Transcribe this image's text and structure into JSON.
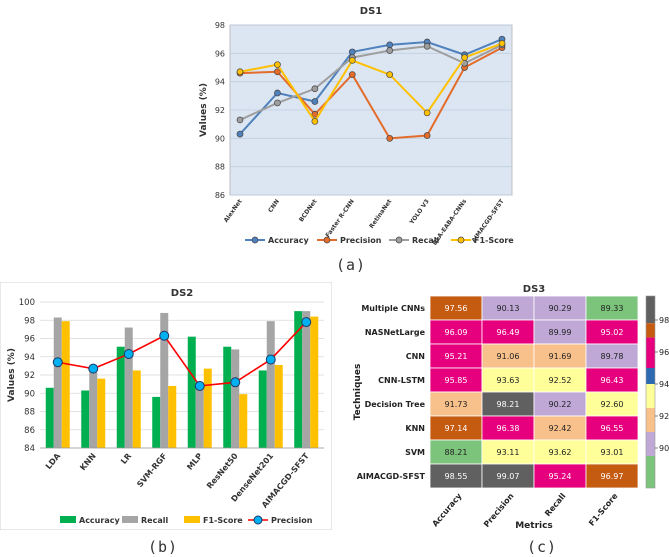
{
  "captions": {
    "a": "(a)",
    "b": "(b)",
    "c": "(c)"
  },
  "chart_data": [
    {
      "id": "ds1",
      "type": "line",
      "title": "DS1",
      "ylabel": "Values (%)",
      "xlabel": "",
      "ylim": [
        86,
        98
      ],
      "yticks": [
        86,
        88,
        90,
        92,
        94,
        96,
        98
      ],
      "grid": true,
      "legend_position": "bottom",
      "categories": [
        "AlexNet",
        "CNN",
        "BCDNet",
        "Faster R-CNN",
        "RetinaNet",
        "YOLO V3",
        "DLA-EABA-CNNs",
        "AIMACGD-SFST"
      ],
      "series": [
        {
          "name": "Accuracy",
          "color": "#4f81bd",
          "values": [
            90.3,
            93.2,
            92.6,
            96.1,
            96.6,
            96.8,
            95.9,
            97.0
          ]
        },
        {
          "name": "Precision",
          "color": "#e46c2a",
          "values": [
            94.6,
            94.7,
            91.7,
            94.5,
            90.0,
            90.2,
            95.0,
            96.4
          ]
        },
        {
          "name": "Recall",
          "color": "#9e9e9e",
          "values": [
            91.3,
            92.5,
            93.5,
            95.7,
            96.2,
            96.5,
            95.3,
            96.6
          ]
        },
        {
          "name": "F1-Score",
          "color": "#ffc000",
          "values": [
            94.7,
            95.2,
            91.2,
            95.5,
            94.5,
            91.8,
            95.7,
            96.7
          ]
        }
      ]
    },
    {
      "id": "ds2",
      "type": "bar",
      "title": "DS2",
      "ylabel": "Values (%)",
      "xlabel": "",
      "ylim": [
        84,
        100
      ],
      "yticks": [
        84,
        86,
        88,
        90,
        92,
        94,
        96,
        98,
        100
      ],
      "grid": true,
      "legend_position": "bottom",
      "categories": [
        "LDA",
        "KNN",
        "LR",
        "SVM-RGF",
        "MLP",
        "ResNet50",
        "DenseNet201",
        "AIMACGD-SFST"
      ],
      "series": [
        {
          "name": "Accuracy",
          "kind": "bar",
          "color": "#00b050",
          "values": [
            90.6,
            90.3,
            95.1,
            89.6,
            96.2,
            95.1,
            92.5,
            99.0
          ]
        },
        {
          "name": "Recall",
          "kind": "bar",
          "color": "#a5a5a5",
          "values": [
            98.3,
            92.3,
            97.2,
            98.8,
            90.6,
            94.8,
            97.9,
            99.0
          ]
        },
        {
          "name": "F1-Score",
          "kind": "bar",
          "color": "#ffc000",
          "values": [
            97.9,
            91.6,
            92.5,
            90.8,
            92.7,
            89.9,
            93.1,
            98.4
          ]
        },
        {
          "name": "Precision",
          "kind": "line",
          "color": "#ff0000",
          "marker": "#00b0f0",
          "values": [
            93.4,
            92.7,
            94.3,
            96.3,
            90.8,
            91.2,
            93.7,
            97.8
          ]
        }
      ]
    },
    {
      "id": "ds3",
      "type": "heatmap",
      "title": "DS3",
      "xlabel": "Metrics",
      "ylabel": "Techniques",
      "x": [
        "Accuracy",
        "Precision",
        "Recall",
        "F1-Score"
      ],
      "y": [
        "Multiple CNNs",
        "NASNetLarge",
        "CNN",
        "CNN-LSTM",
        "Decision Tree",
        "KNN",
        "SVM",
        "AIMACGD-SFST"
      ],
      "values": [
        [
          97.56,
          90.13,
          90.29,
          89.33
        ],
        [
          96.09,
          96.49,
          89.99,
          95.02
        ],
        [
          95.21,
          91.06,
          91.69,
          89.78
        ],
        [
          95.85,
          93.63,
          92.52,
          96.43
        ],
        [
          91.73,
          98.21,
          90.22,
          92.6
        ],
        [
          97.14,
          96.38,
          92.42,
          96.55
        ],
        [
          88.21,
          93.11,
          93.62,
          93.01
        ],
        [
          98.55,
          99.07,
          95.24,
          96.97
        ]
      ],
      "colorbar_ticks": [
        98,
        96,
        94,
        92,
        90
      ],
      "colorbar_bands": [
        {
          "from": 97.8,
          "to": 99.5,
          "color": "#606060"
        },
        {
          "from": 96.9,
          "to": 97.8,
          "color": "#c55a11"
        },
        {
          "from": 95.0,
          "to": 96.9,
          "color": "#e6007e"
        },
        {
          "from": 94.0,
          "to": 95.0,
          "color": "#2e6ab1"
        },
        {
          "from": 92.5,
          "to": 94.0,
          "color": "#ffff99"
        },
        {
          "from": 91.0,
          "to": 92.5,
          "color": "#f8c08a"
        },
        {
          "from": 89.5,
          "to": 91.0,
          "color": "#bfa8d6"
        },
        {
          "from": 87.5,
          "to": 89.5,
          "color": "#7cc47c"
        }
      ]
    }
  ]
}
